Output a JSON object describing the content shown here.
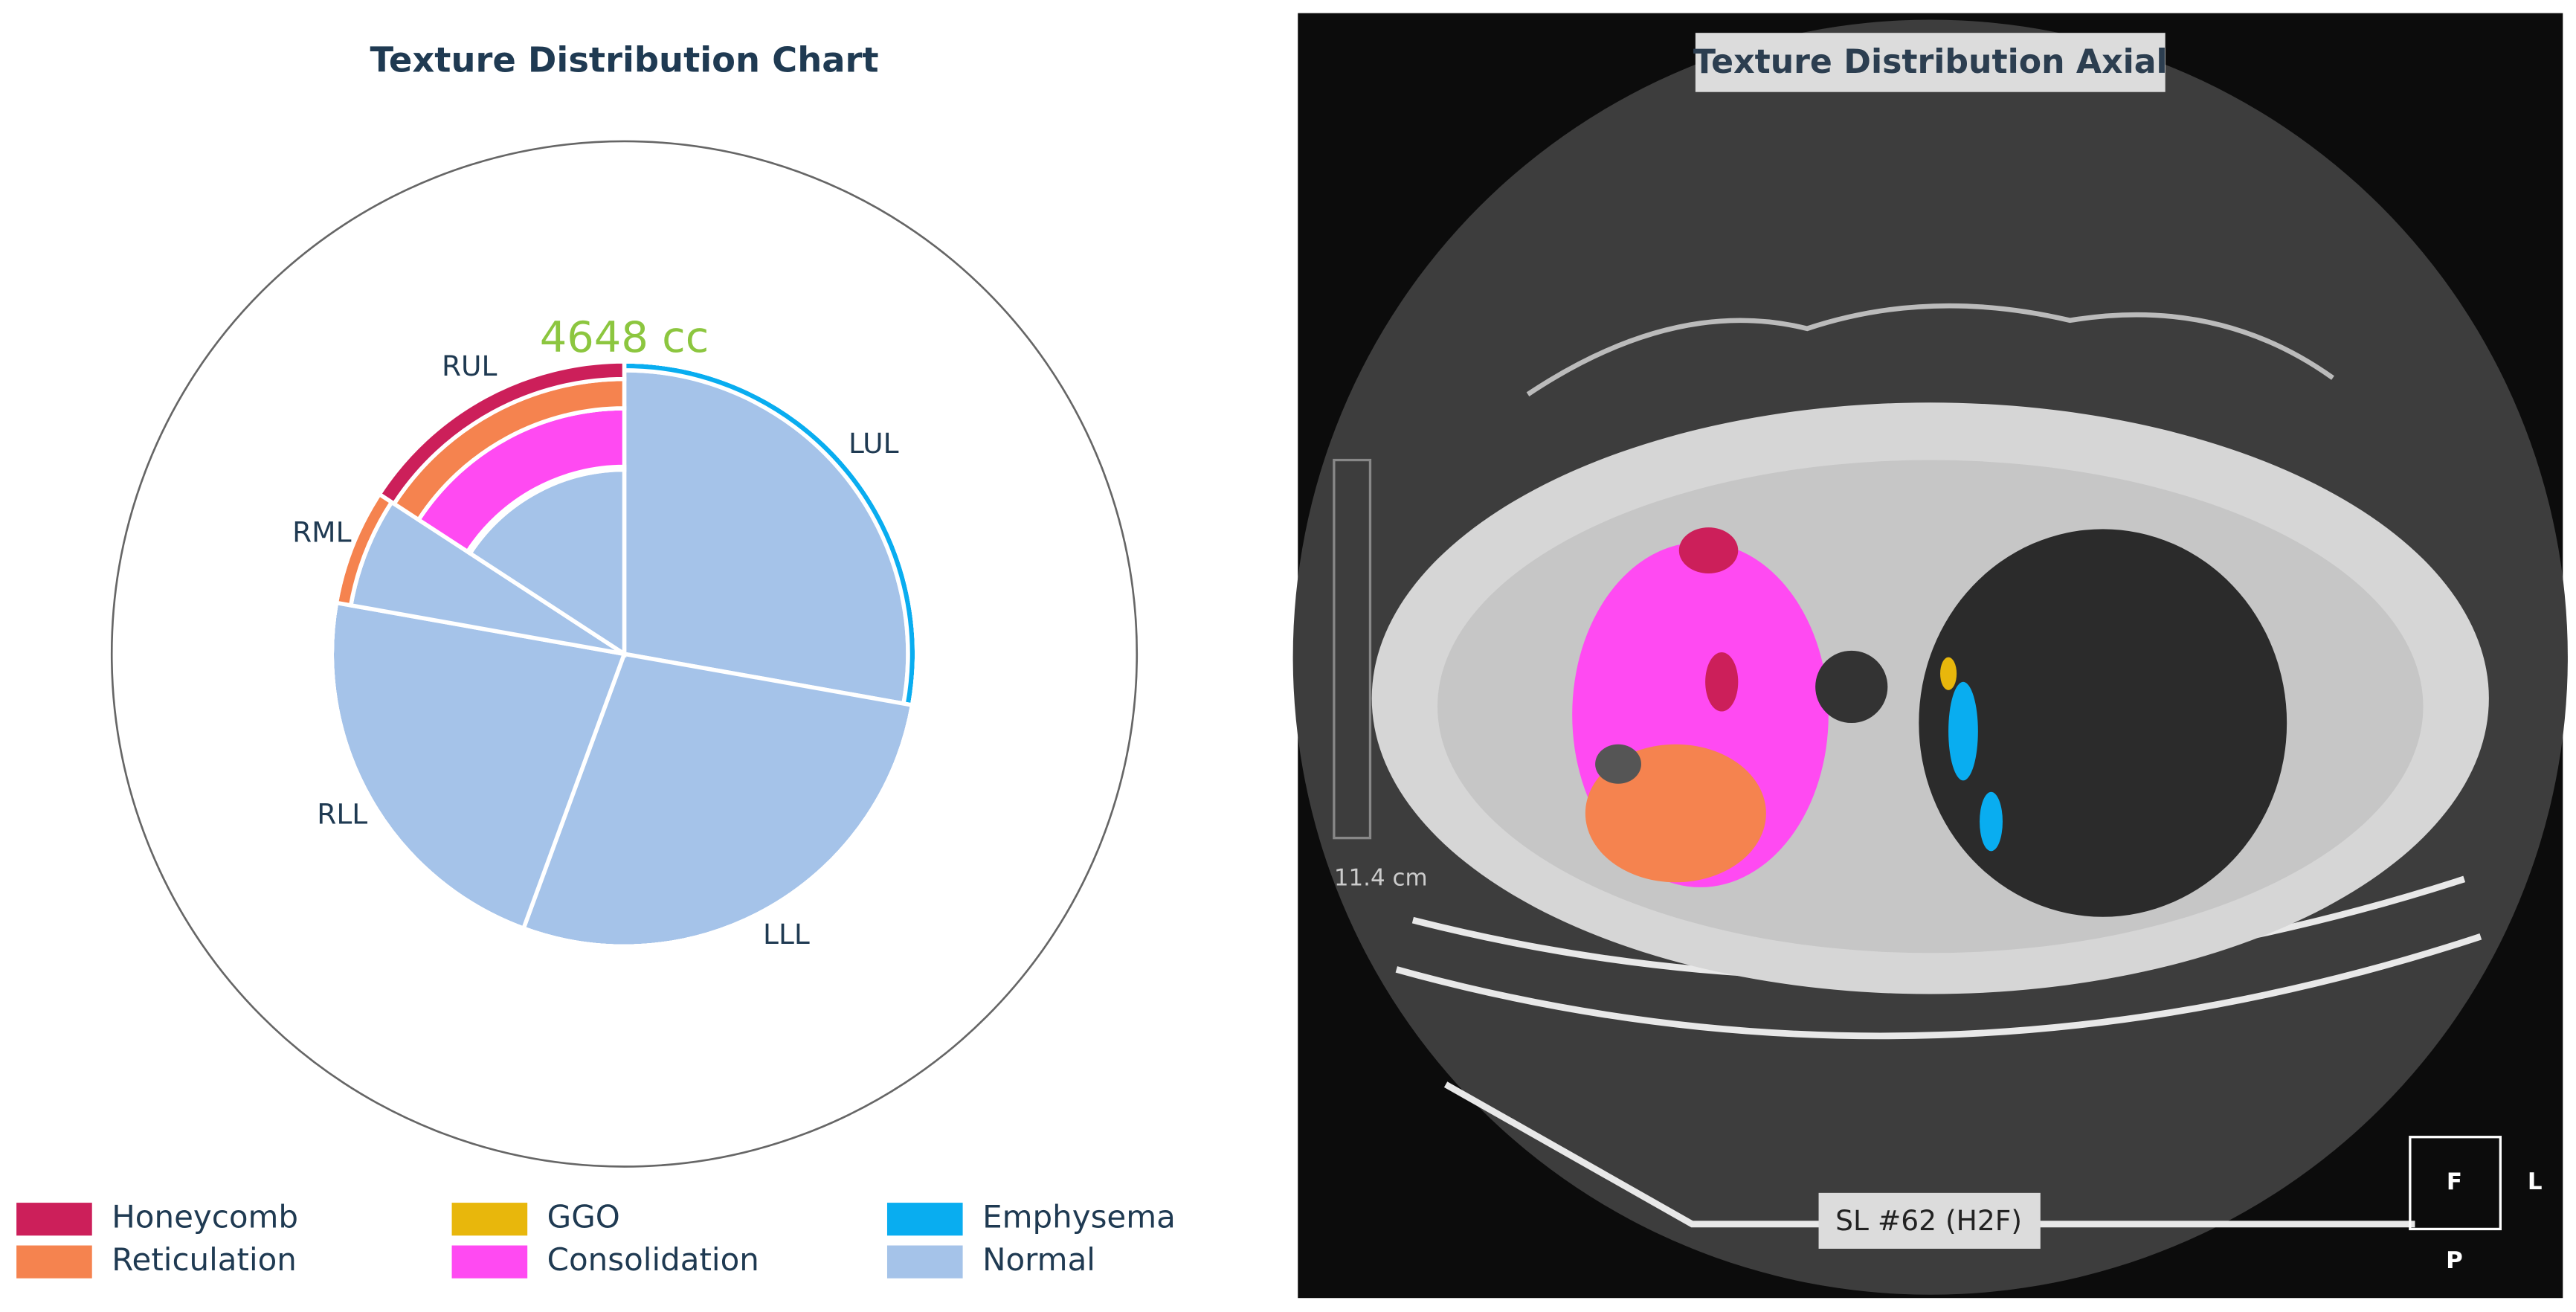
{
  "chart_data": {
    "type": "lobe_pie",
    "title": "Texture Distribution Chart",
    "total": {
      "value": 4648,
      "label": "4648 cc"
    },
    "categories": [
      "LUL",
      "LLL",
      "RLL",
      "RML",
      "RUL"
    ],
    "values": [
      27.8,
      27.8,
      22.2,
      6.4,
      15.8
    ],
    "series": [
      {
        "name": "Honeycomb",
        "color": "#cc1f5a",
        "values": [
          0,
          0,
          0,
          0,
          6
        ]
      },
      {
        "name": "Reticulation",
        "color": "#f5834f",
        "values": [
          0,
          0,
          0,
          5,
          10
        ]
      },
      {
        "name": "GGO",
        "color": "#e8b70c",
        "values": [
          0,
          0,
          0,
          0,
          0
        ]
      },
      {
        "name": "Consolidation",
        "color": "#ff4af2",
        "values": [
          0,
          0,
          0,
          0,
          20
        ]
      },
      {
        "name": "Emphysema",
        "color": "#09adf0",
        "values": [
          3,
          0,
          0,
          0,
          1
        ]
      },
      {
        "name": "Normal",
        "color": "#a5c3e9",
        "values": [
          97,
          100,
          100,
          95,
          63
        ]
      }
    ]
  },
  "viewer": {
    "title": "Texture Distribution Axial",
    "slice_label": "SL #62 (H2F)",
    "scale_label": "11.4 cm",
    "orientation": {
      "top": "F",
      "right": "L",
      "bottom": "P"
    }
  }
}
